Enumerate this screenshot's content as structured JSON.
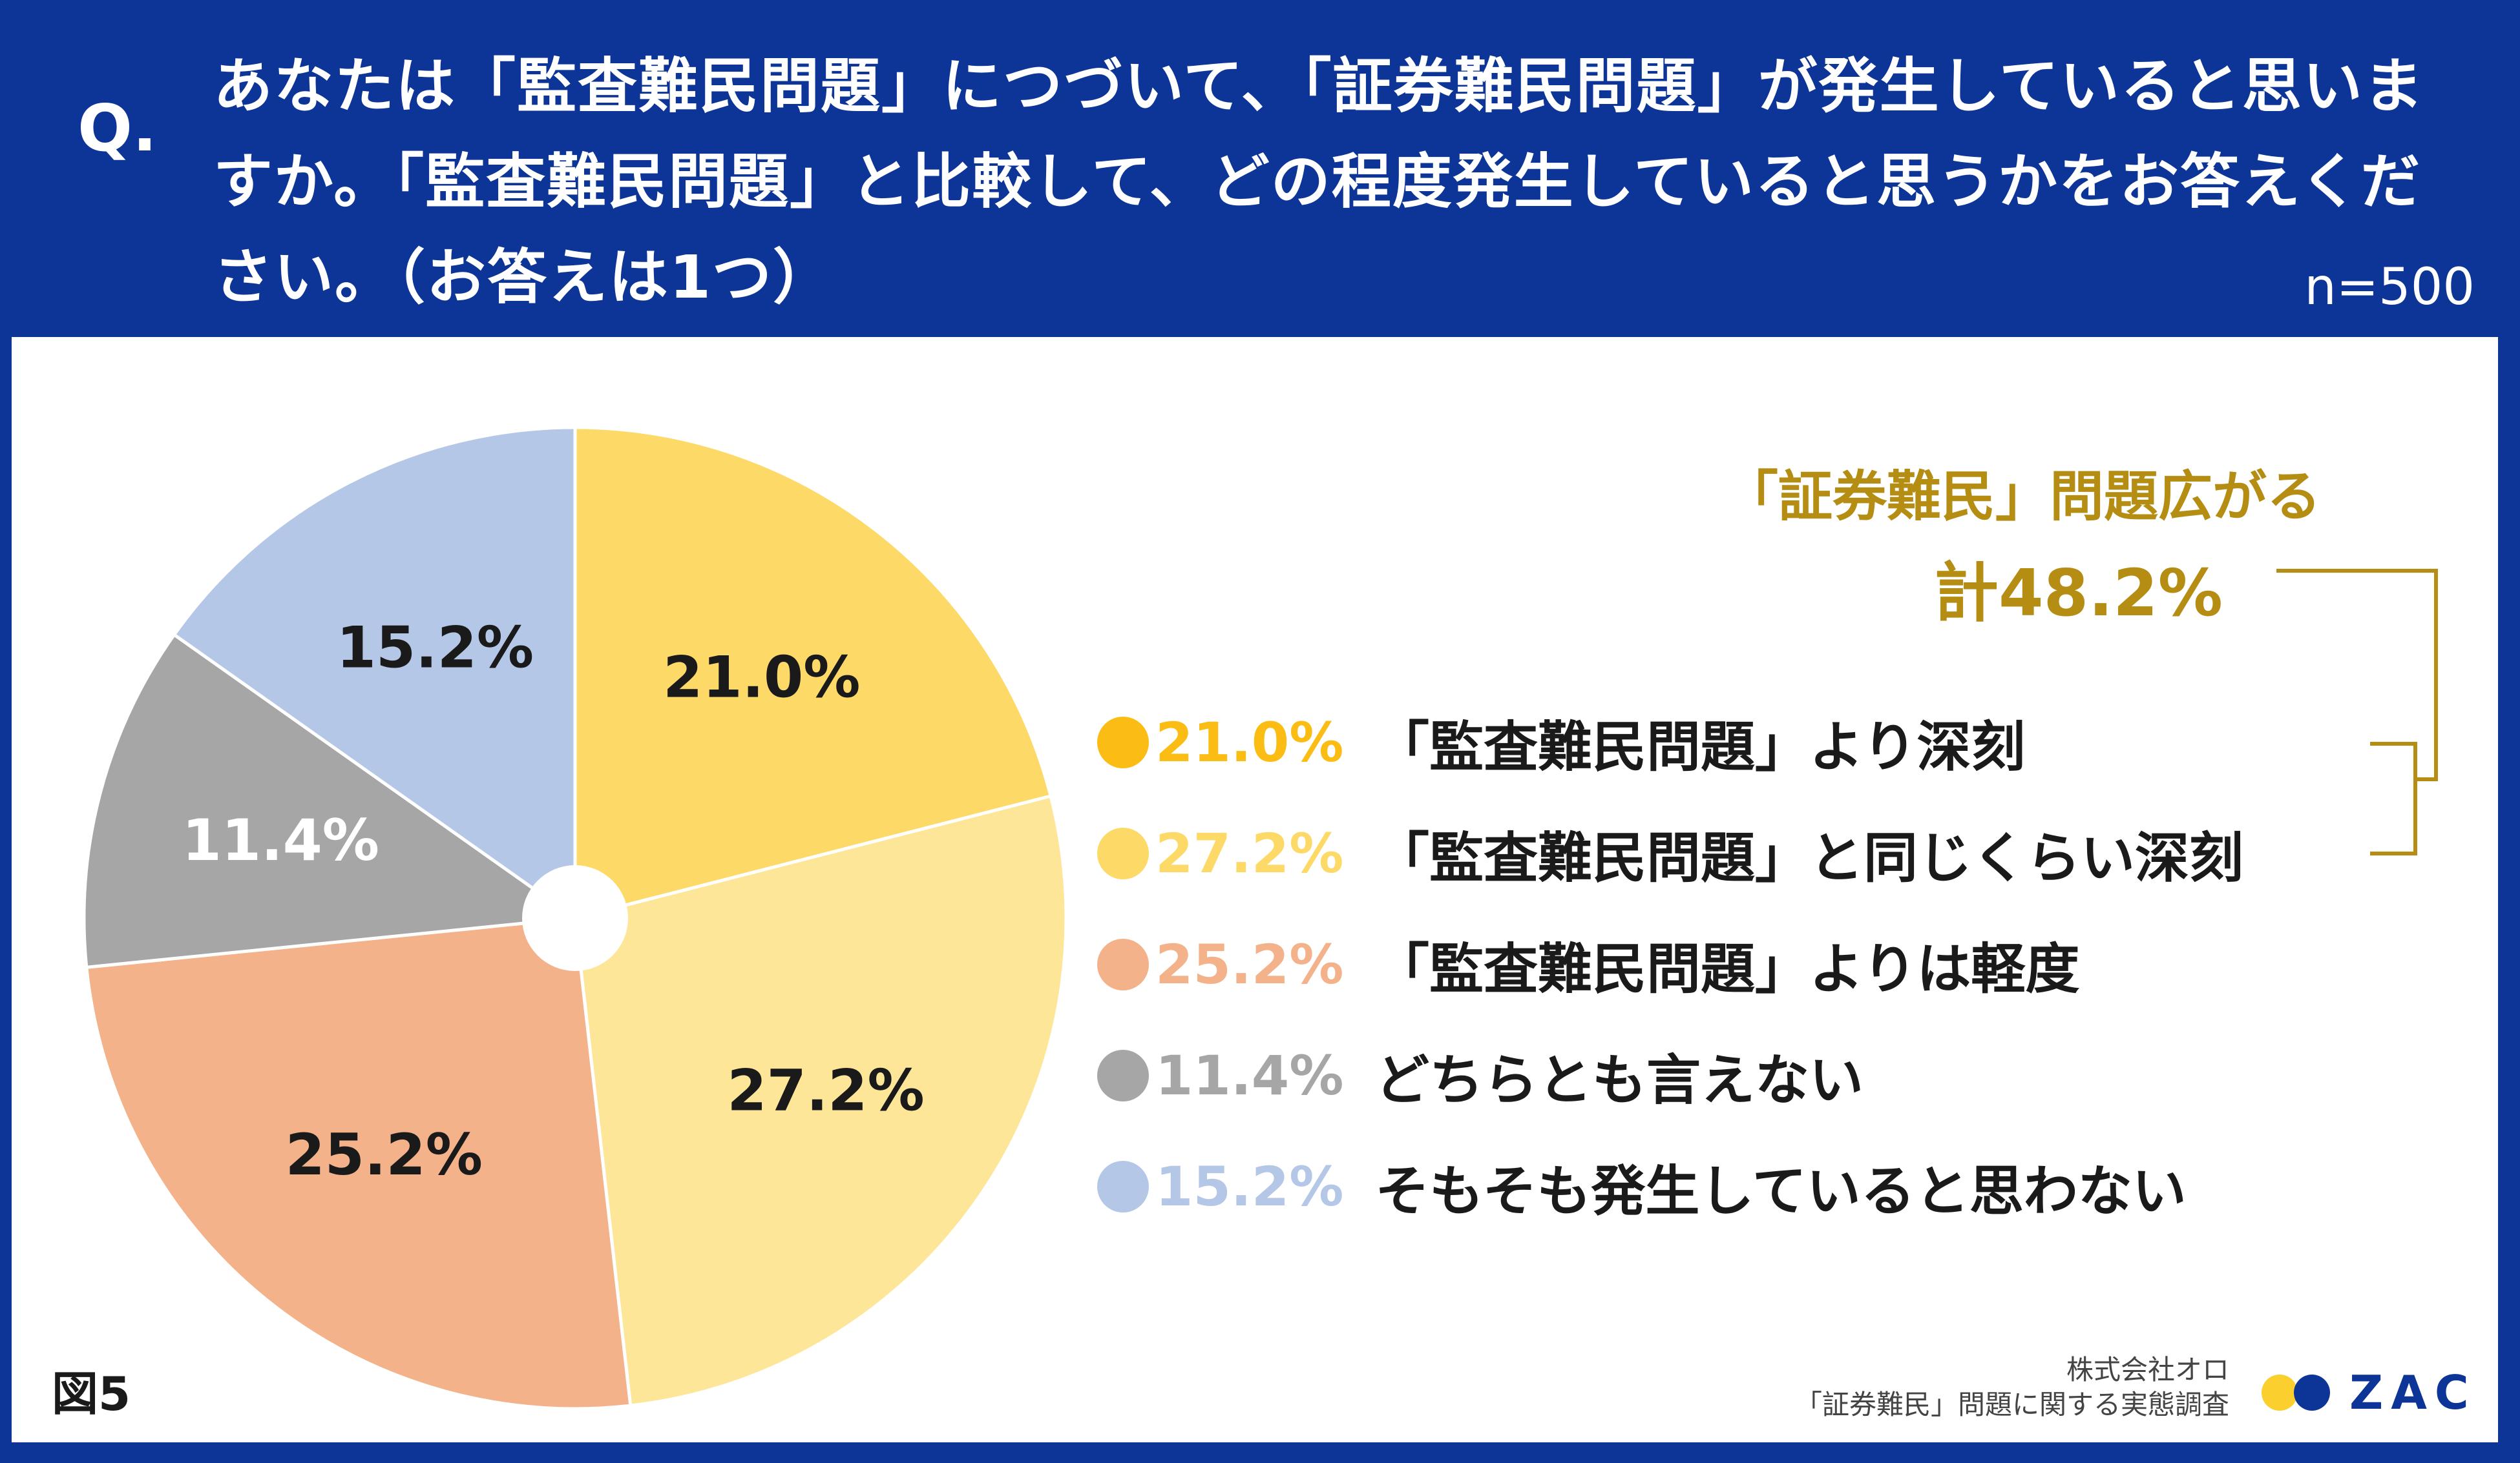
{
  "header": {
    "q_mark": "Q.",
    "question": "あなたは「監査難民問題」につづいて、「証券難民問題」が発生していると思いますか。「監査難民問題」と比較して、どの程度発生していると思うかをお答えください。（お答えは1つ）",
    "sample_size": "n=500"
  },
  "chart_data": {
    "type": "pie",
    "title": "あなたは「監査難民問題」につづいて、「証券難民問題」が発生していると思いますか。",
    "unit": "%",
    "slices": [
      {
        "label": "「監査難民問題」より深刻",
        "value": 21.0,
        "display": "21.0%",
        "color": "#fdd968",
        "text_color": "#1a1a1a",
        "legend_dot": "#fbbd13",
        "legend_pct": "#fbbd13"
      },
      {
        "label": "「監査難民問題」と同じくらい深刻",
        "value": 27.2,
        "display": "27.2%",
        "color": "#fee699",
        "text_color": "#1a1a1a",
        "legend_dot": "#fdd968",
        "legend_pct": "#fdd968"
      },
      {
        "label": "「監査難民問題」よりは軽度",
        "value": 25.2,
        "display": "25.2%",
        "color": "#f3b28a",
        "text_color": "#1a1a1a",
        "legend_dot": "#f3b28a",
        "legend_pct": "#f3b28a"
      },
      {
        "label": "どちらとも言えない",
        "value": 11.4,
        "display": "11.4%",
        "color": "#a6a6a6",
        "text_color": "#ffffff",
        "legend_dot": "#a6a6a6",
        "legend_pct": "#a6a6a6"
      },
      {
        "label": "そもそも発生していると思わない",
        "value": 15.2,
        "display": "15.2%",
        "color": "#b4c7e7",
        "text_color": "#1a1a1a",
        "legend_dot": "#b4c7e7",
        "legend_pct": "#b4c7e7"
      }
    ]
  },
  "callout": {
    "title": "「証券難民」問題広がる",
    "total": "計48.2%",
    "color": "#b58d13"
  },
  "footer": {
    "figure_label": "図5",
    "company": "株式会社オロ",
    "survey": "「証券難民」問題に関する実態調査",
    "logo_text": "ZAC",
    "logo_colors": [
      "#fbd02e",
      "#0d3497"
    ]
  }
}
